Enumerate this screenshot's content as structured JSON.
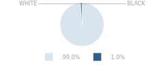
{
  "chart_data": {
    "type": "pie",
    "categories": [
      "99.0%",
      "1.0%"
    ],
    "values": [
      99.0,
      1.0
    ],
    "colors": [
      "#d9e4ef",
      "#2d5f8b"
    ],
    "annotations": [
      "WHITE",
      "BLACK"
    ],
    "legend": "bottom"
  }
}
